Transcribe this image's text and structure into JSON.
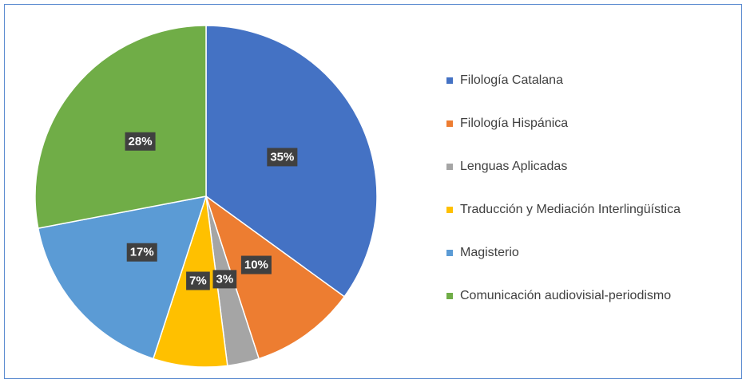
{
  "chart_data": {
    "type": "pie",
    "categories": [
      "Filología Catalana",
      "Filología Hispánica",
      "Lenguas Aplicadas",
      "Traducción y Mediación Interlingüística",
      "Magisterio",
      "Comunicación audiovisial-periodismo"
    ],
    "values": [
      35,
      10,
      3,
      7,
      17,
      28
    ],
    "value_labels": [
      "35%",
      "10%",
      "3%",
      "7%",
      "17%",
      "28%"
    ],
    "colors": [
      "#4472c4",
      "#ed7d31",
      "#a5a5a5",
      "#ffc000",
      "#5b9bd5",
      "#70ad47"
    ],
    "legend": "right"
  }
}
